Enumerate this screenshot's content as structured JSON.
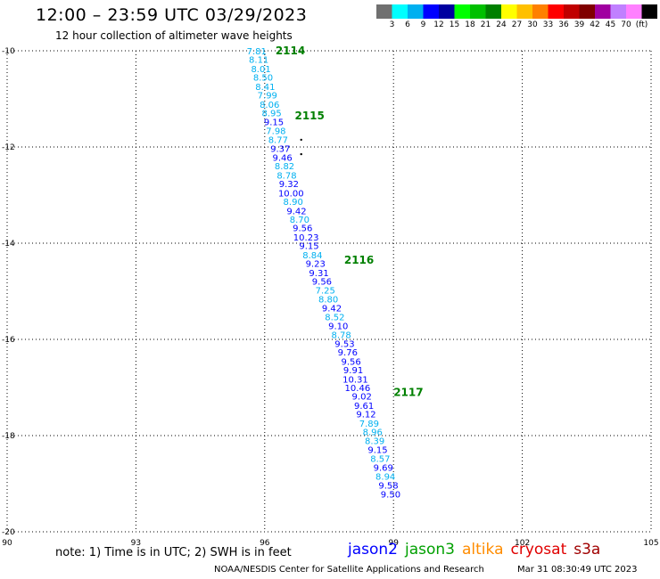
{
  "header": {
    "title": "12:00 – 23:59 UTC 03/29/2023",
    "subtitle": "12 hour collection of altimeter wave heights"
  },
  "colorbar": {
    "unit": "(ft)",
    "colors": [
      "#707070",
      "#00ffff",
      "#00b0f0",
      "#0000ff",
      "#0000a0",
      "#00ff00",
      "#00c000",
      "#008000",
      "#ffff00",
      "#ffc000",
      "#ff8000",
      "#ff0000",
      "#c00000",
      "#800000",
      "#a000a0",
      "#c080ff",
      "#ff80ff",
      "#000000"
    ],
    "labels": [
      "3",
      "6",
      "9",
      "12",
      "15",
      "18",
      "21",
      "24",
      "27",
      "30",
      "33",
      "36",
      "39",
      "42",
      "45",
      "70"
    ]
  },
  "map": {
    "lon_ticks": [
      "90",
      "93",
      "96",
      "99",
      "102",
      "105"
    ],
    "lat_ticks": [
      "-10",
      "-12",
      "-14",
      "-16",
      "-18",
      "-20"
    ],
    "times": [
      {
        "label": "2114",
        "lon": 96.25,
        "lat": -10.0
      },
      {
        "label": "2115",
        "lon": 96.7,
        "lat": -11.35
      },
      {
        "label": "2116",
        "lon": 97.85,
        "lat": -14.35
      },
      {
        "label": "2117",
        "lon": 99.0,
        "lat": -17.1
      }
    ],
    "island_marks": [
      {
        "lon": 96.85,
        "lat": -11.85
      },
      {
        "lon": 96.85,
        "lat": -12.15
      }
    ],
    "track": [
      {
        "v": "7.81",
        "lon": 95.75,
        "lat": -10.0
      },
      {
        "v": "8.11",
        "lon": 95.8,
        "lat": -10.18
      },
      {
        "v": "8.01",
        "lon": 95.85,
        "lat": -10.37
      },
      {
        "v": "8.50",
        "lon": 95.9,
        "lat": -10.55
      },
      {
        "v": "8.41",
        "lon": 95.95,
        "lat": -10.74
      },
      {
        "v": "7.99",
        "lon": 96.0,
        "lat": -10.92
      },
      {
        "v": "8.06",
        "lon": 96.05,
        "lat": -11.11
      },
      {
        "v": "8.95",
        "lon": 96.1,
        "lat": -11.29
      },
      {
        "v": "9.15",
        "lon": 96.15,
        "lat": -11.47
      },
      {
        "v": "7.98",
        "lon": 96.2,
        "lat": -11.66
      },
      {
        "v": "8.77",
        "lon": 96.25,
        "lat": -11.84
      },
      {
        "v": "9.37",
        "lon": 96.3,
        "lat": -12.03
      },
      {
        "v": "9.46",
        "lon": 96.35,
        "lat": -12.21
      },
      {
        "v": "8.82",
        "lon": 96.4,
        "lat": -12.39
      },
      {
        "v": "8.78",
        "lon": 96.45,
        "lat": -12.58
      },
      {
        "v": "9.32",
        "lon": 96.5,
        "lat": -12.76
      },
      {
        "v": "10.00",
        "lon": 96.55,
        "lat": -12.95
      },
      {
        "v": "8.90",
        "lon": 96.6,
        "lat": -13.13
      },
      {
        "v": "9.42",
        "lon": 96.68,
        "lat": -13.32
      },
      {
        "v": "8.70",
        "lon": 96.75,
        "lat": -13.5
      },
      {
        "v": "9.56",
        "lon": 96.82,
        "lat": -13.68
      },
      {
        "v": "10.23",
        "lon": 96.9,
        "lat": -13.87
      },
      {
        "v": "9.15",
        "lon": 96.97,
        "lat": -14.05
      },
      {
        "v": "8.84",
        "lon": 97.05,
        "lat": -14.24
      },
      {
        "v": "9.23",
        "lon": 97.12,
        "lat": -14.42
      },
      {
        "v": "9.31",
        "lon": 97.2,
        "lat": -14.61
      },
      {
        "v": "9.56",
        "lon": 97.27,
        "lat": -14.79
      },
      {
        "v": "7.25",
        "lon": 97.35,
        "lat": -14.97
      },
      {
        "v": "8.80",
        "lon": 97.42,
        "lat": -15.16
      },
      {
        "v": "9.42",
        "lon": 97.5,
        "lat": -15.34
      },
      {
        "v": "8.52",
        "lon": 97.57,
        "lat": -15.53
      },
      {
        "v": "9.10",
        "lon": 97.65,
        "lat": -15.71
      },
      {
        "v": "8.78",
        "lon": 97.72,
        "lat": -15.9
      },
      {
        "v": "9.53",
        "lon": 97.8,
        "lat": -16.08
      },
      {
        "v": "9.76",
        "lon": 97.87,
        "lat": -16.26
      },
      {
        "v": "9.56",
        "lon": 97.95,
        "lat": -16.45
      },
      {
        "v": "9.91",
        "lon": 98.0,
        "lat": -16.63
      },
      {
        "v": "10.31",
        "lon": 98.05,
        "lat": -16.82
      },
      {
        "v": "10.46",
        "lon": 98.1,
        "lat": -17.0
      },
      {
        "v": "9.02",
        "lon": 98.2,
        "lat": -17.18
      },
      {
        "v": "9.61",
        "lon": 98.25,
        "lat": -17.37
      },
      {
        "v": "9.12",
        "lon": 98.3,
        "lat": -17.55
      },
      {
        "v": "7.89",
        "lon": 98.37,
        "lat": -17.74
      },
      {
        "v": "8.96",
        "lon": 98.45,
        "lat": -17.92
      },
      {
        "v": "8.39",
        "lon": 98.5,
        "lat": -18.1
      },
      {
        "v": "9.15",
        "lon": 98.57,
        "lat": -18.29
      },
      {
        "v": "8.57",
        "lon": 98.63,
        "lat": -18.47
      },
      {
        "v": "9.69",
        "lon": 98.7,
        "lat": -18.66
      },
      {
        "v": "8.94",
        "lon": 98.75,
        "lat": -18.84
      },
      {
        "v": "9.58",
        "lon": 98.82,
        "lat": -19.03
      },
      {
        "v": "9.50",
        "lon": 98.87,
        "lat": -19.21
      }
    ]
  },
  "footer": {
    "note": "note:  1) Time is in UTC;  2) SWH is in feet",
    "credit": "NOAA/NESDIS Center for Satellite Applications and Research",
    "timestamp": "Mar 31 08:30:49 UTC 2023",
    "missions": [
      {
        "name": "jason2",
        "color": "#0000ff"
      },
      {
        "name": "jason3",
        "color": "#00a000"
      },
      {
        "name": "altika",
        "color": "#ff8c00"
      },
      {
        "name": "cryosat",
        "color": "#e00000"
      },
      {
        "name": "s3a",
        "color": "#a00000"
      }
    ]
  }
}
